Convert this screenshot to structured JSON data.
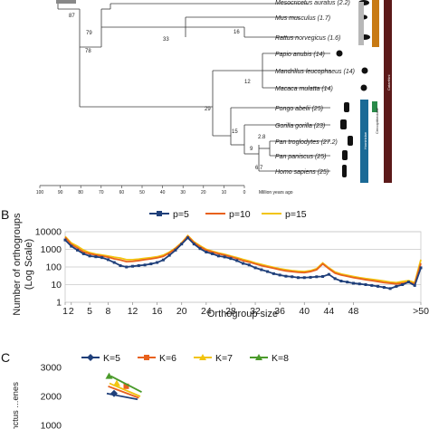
{
  "panelA": {
    "species": [
      {
        "label": "Mesocricetus auratus (2.2)",
        "y": 2
      },
      {
        "label": "Mus musculus (1.7)",
        "y": 19
      },
      {
        "label": "Rattus norvegicus (1.6)",
        "y": 41
      },
      {
        "label": "Papio anubis (14)",
        "y": 59
      },
      {
        "label": "Mandrillus leucophaeus (14)",
        "y": 78
      },
      {
        "label": "Macaca mulatta (14)",
        "y": 97
      },
      {
        "label": "Pongo abelii (25)",
        "y": 119
      },
      {
        "label": "Gorilla gorilla (23)",
        "y": 138
      },
      {
        "label": "Pan troglodytes (27.2)",
        "y": 156
      },
      {
        "label": "Pan paniscus (25)",
        "y": 172
      },
      {
        "label": "Homo sapiens (25)",
        "y": 189
      }
    ],
    "node_labels": [
      "87",
      "79",
      "33",
      "16",
      "78",
      "12",
      "29",
      "15",
      "9",
      "2.8",
      "6.7"
    ],
    "axis_ticks": [
      "100",
      "90",
      "80",
      "70",
      "60",
      "50",
      "40",
      "30",
      "20",
      "10",
      "0"
    ],
    "axis_title": "Million years ago",
    "bar_labels": [
      "Cercopithecidae",
      "Hominidae",
      "Catarrhini"
    ],
    "colors": {
      "bar_blue": "#1b6a96",
      "bar_brown": "#5c1a1a",
      "bar_orange": "#c87a14",
      "bar_gray": "#b8b8b8"
    }
  },
  "panelB": {
    "label": "B",
    "chart_data": {
      "type": "line",
      "xlabel": "Orthogroup size",
      "ylabel": "Number of orthogroups (Log Scale)",
      "ylim": [
        1,
        10000
      ],
      "yscale": "log",
      "grid": true,
      "legend_position": "top",
      "x_ticks": [
        "1",
        "2",
        "5",
        "8",
        "12",
        "16",
        "20",
        "24",
        "28",
        "32",
        "36",
        "40",
        "44",
        "48",
        ">50"
      ],
      "y_ticks": [
        "1",
        "10",
        "100",
        "1000",
        "10000"
      ],
      "series": [
        {
          "name": "p=5",
          "color": "#1f3f7a",
          "marker": "square",
          "values": [
            3400,
            1500,
            900,
            560,
            420,
            380,
            340,
            260,
            180,
            120,
            100,
            110,
            120,
            130,
            150,
            180,
            250,
            460,
            900,
            2000,
            4500,
            2000,
            1100,
            700,
            560,
            420,
            370,
            300,
            230,
            160,
            130,
            90,
            70,
            55,
            42,
            35,
            30,
            28,
            25,
            25,
            26,
            28,
            29,
            38,
            22,
            16,
            14,
            12,
            11,
            10,
            9,
            8,
            7,
            6,
            8,
            10,
            14,
            9,
            90
          ]
        },
        {
          "name": "p=10",
          "color": "#e8611c",
          "marker": "none",
          "values": [
            4800,
            1900,
            1200,
            700,
            560,
            480,
            420,
            360,
            290,
            250,
            200,
            210,
            230,
            260,
            290,
            330,
            400,
            620,
            1100,
            2200,
            5500,
            2400,
            1400,
            900,
            700,
            560,
            470,
            380,
            300,
            230,
            190,
            150,
            120,
            100,
            85,
            70,
            60,
            55,
            50,
            48,
            55,
            70,
            150,
            80,
            45,
            35,
            30,
            25,
            22,
            19,
            17,
            15,
            13,
            12,
            11,
            12,
            14,
            11,
            160
          ]
        },
        {
          "name": "p=15",
          "color": "#f2c40f",
          "marker": "none",
          "values": [
            5400,
            2300,
            1500,
            900,
            650,
            540,
            480,
            420,
            360,
            320,
            260,
            260,
            280,
            310,
            340,
            380,
            470,
            700,
            1200,
            2400,
            6000,
            2700,
            1600,
            1000,
            780,
            620,
            520,
            420,
            340,
            270,
            220,
            170,
            140,
            115,
            95,
            80,
            70,
            62,
            58,
            55,
            62,
            80,
            170,
            90,
            52,
            40,
            34,
            29,
            25,
            22,
            20,
            18,
            16,
            14,
            13,
            15,
            17,
            13,
            260
          ]
        }
      ]
    }
  },
  "panelC": {
    "label": "C",
    "chart_data": {
      "type": "line",
      "title": "",
      "ylabel": "...inctus ...enes",
      "y_ticks": [
        "3000",
        "2000",
        "1000"
      ],
      "series": [
        {
          "name": "K=5",
          "color": "#1f3f7a",
          "marker": "diamond",
          "values": [
            2100,
            1900
          ]
        },
        {
          "name": "K=6",
          "color": "#e8611c",
          "marker": "square",
          "values": [
            2350,
            1950
          ]
        },
        {
          "name": "K=7",
          "color": "#f2c40f",
          "marker": "triangle",
          "values": [
            2450,
            2000
          ]
        },
        {
          "name": "K=8",
          "color": "#4a9a2a",
          "marker": "triangle",
          "values": [
            2700,
            2150
          ]
        }
      ]
    }
  }
}
